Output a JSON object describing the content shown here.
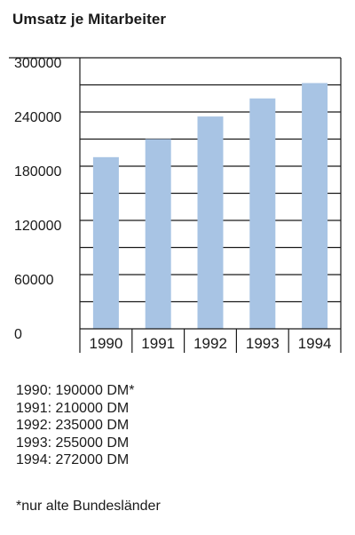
{
  "title": "Umsatz je Mitarbeiter",
  "value_lines": [
    "1990: 190000 DM*",
    "1991: 210000 DM",
    "1992: 235000 DM",
    "1993: 255000 DM",
    "1994: 272000 DM"
  ],
  "footnote": "*nur alte Bundesländer",
  "chart_data": {
    "type": "bar",
    "title": "Umsatz je Mitarbeiter",
    "xlabel": "",
    "ylabel": "",
    "categories": [
      "1990",
      "1991",
      "1992",
      "1993",
      "1994"
    ],
    "values": [
      190000,
      210000,
      235000,
      255000,
      272000
    ],
    "ylim": [
      0,
      300000
    ],
    "yticks": [
      0,
      60000,
      120000,
      180000,
      240000,
      300000
    ],
    "ytick_labels": [
      "0",
      "60000",
      "120000",
      "180000",
      "240000",
      "300000"
    ],
    "grid": true,
    "bar_color": "#a8c4e4"
  }
}
